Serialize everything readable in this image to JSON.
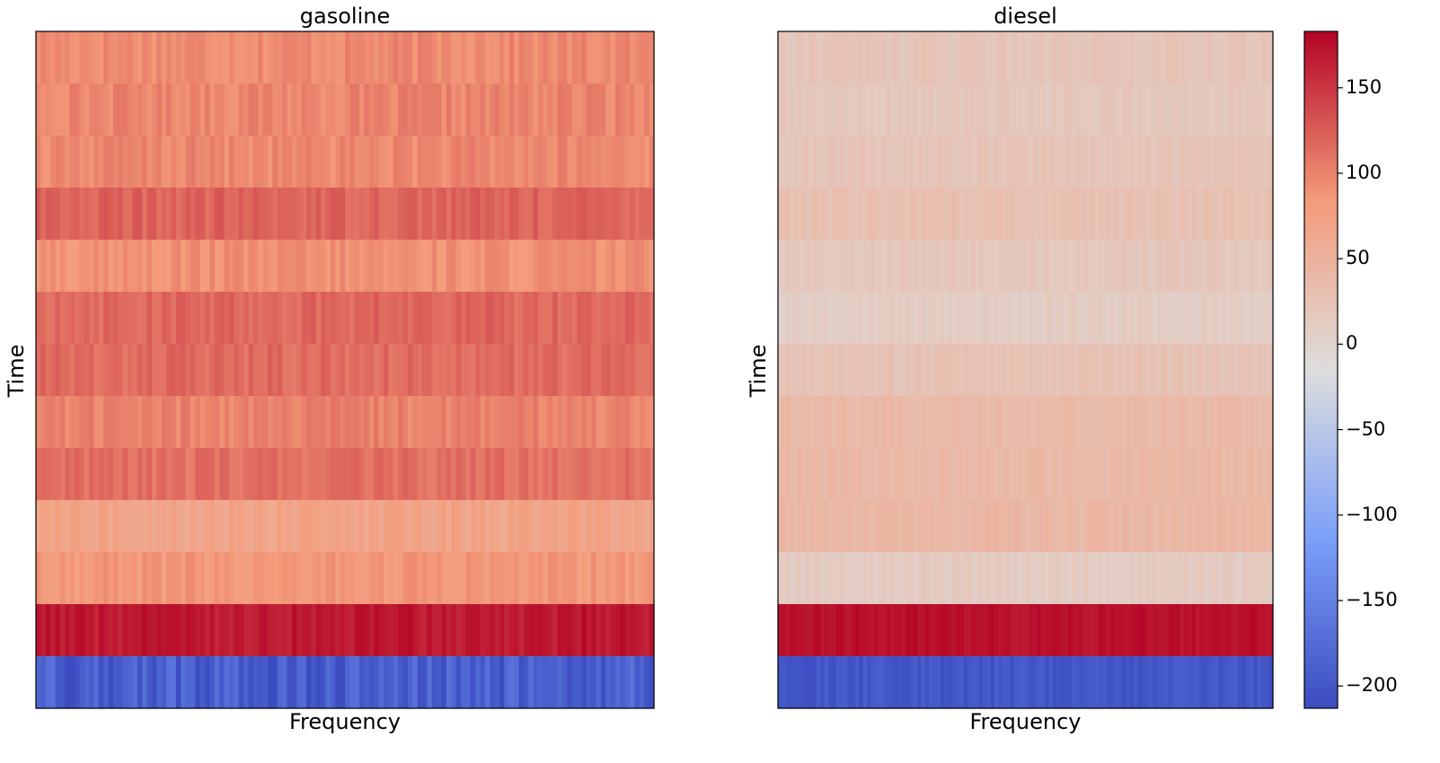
{
  "chart_data": [
    {
      "type": "heatmap",
      "title": "gasoline",
      "xlabel": "Frequency",
      "ylabel": "Time",
      "rows": 13,
      "columns": 128,
      "row_values_top_to_bottom": [
        95,
        98,
        96,
        120,
        90,
        118,
        115,
        100,
        112,
        70,
        85,
        170,
        -190
      ],
      "column_variation": 10,
      "last_row_variation": 25,
      "colormap": "coolwarm"
    },
    {
      "type": "heatmap",
      "title": "diesel",
      "xlabel": "Frequency",
      "ylabel": "Time",
      "rows": 13,
      "columns": 128,
      "row_values_top_to_bottom": [
        22,
        18,
        22,
        28,
        18,
        10,
        25,
        38,
        40,
        42,
        12,
        175,
        -200
      ],
      "column_variation": 6,
      "last_row_variation": 10,
      "colormap": "coolwarm"
    }
  ],
  "colorbar": {
    "vmin": -213,
    "vmax": 183,
    "ticks": [
      150,
      100,
      50,
      0,
      -50,
      -100,
      -150,
      -200
    ],
    "tick_labels": [
      "150",
      "100",
      "50",
      "0",
      "−50",
      "−100",
      "−150",
      "−200"
    ]
  }
}
